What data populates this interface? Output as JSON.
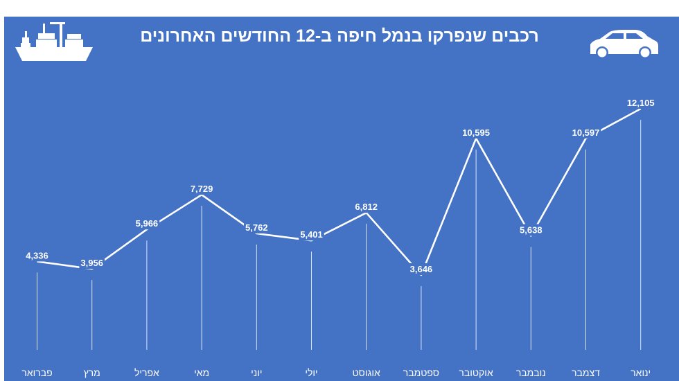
{
  "colors": {
    "background": "#4472c4",
    "foreground": "#ffffff"
  },
  "icons": {
    "left": "cargo-ship-icon",
    "right": "car-icon"
  },
  "chart_data": {
    "type": "line",
    "title": "רכבים שנפרקו בנמל חיפה ב-12 החודשים האחרונים",
    "xlabel": "",
    "ylabel": "",
    "categories": [
      "פברואר",
      "מרץ",
      "אפריל",
      "מאי",
      "יוני",
      "יולי",
      "אוגוסט",
      "ספטמבר",
      "אוקטובר",
      "נובמבר",
      "דצמבר",
      "ינואר"
    ],
    "values": [
      4336,
      3956,
      5966,
      7729,
      5762,
      5401,
      6812,
      3646,
      10595,
      5638,
      10597,
      12105
    ],
    "value_labels": [
      "4,336",
      "3,956",
      "5,966",
      "7,729",
      "5,762",
      "5,401",
      "6,812",
      "3,646",
      "10,595",
      "5,638",
      "10,597",
      "12,105"
    ],
    "ylim": [
      0,
      12105
    ],
    "grid": false,
    "legend": "none"
  }
}
